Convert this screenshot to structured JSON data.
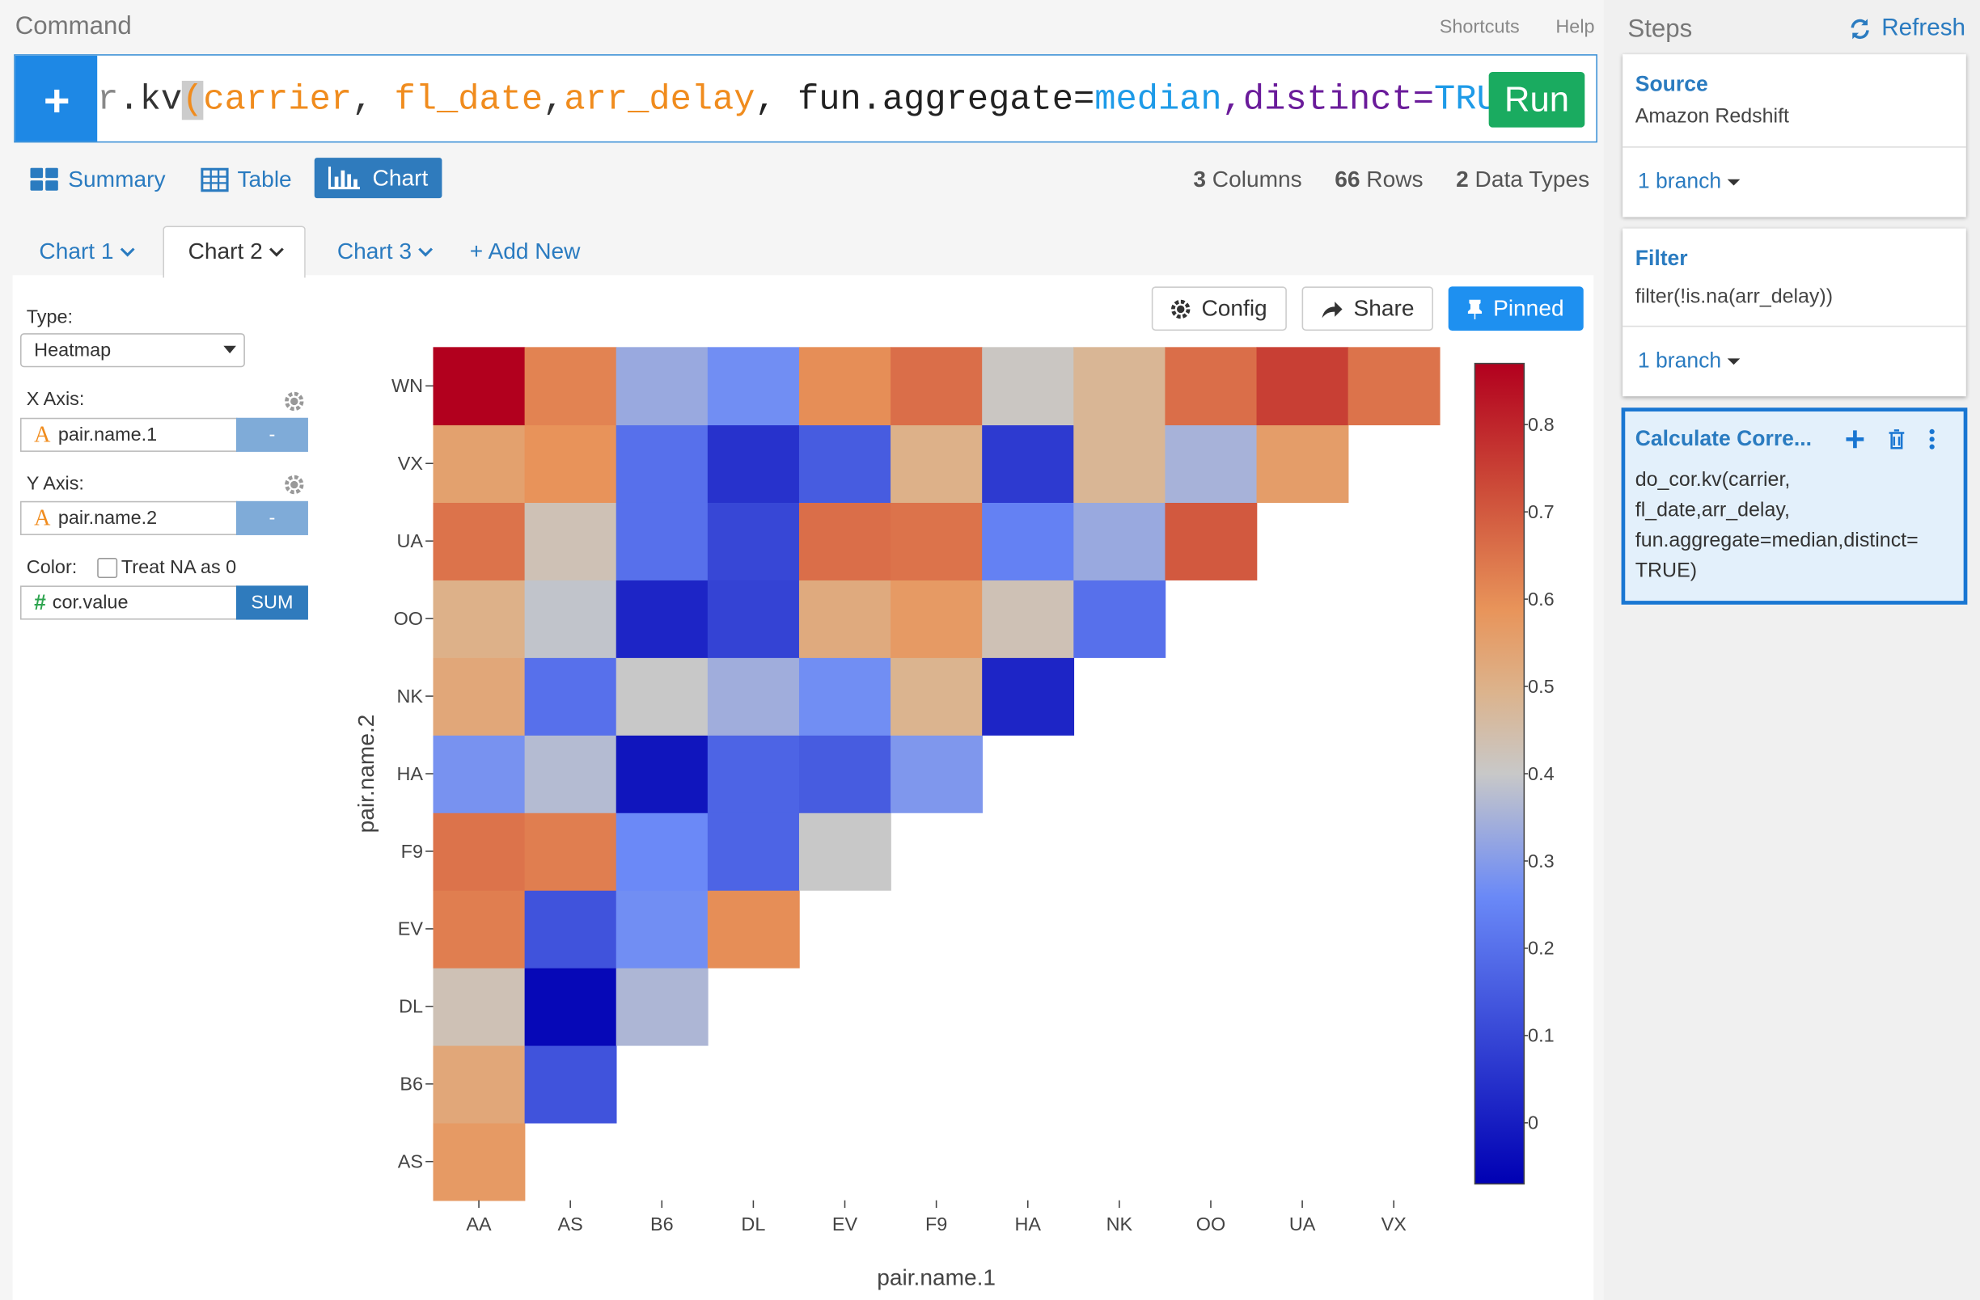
{
  "app": {
    "command_label": "Command",
    "shortcuts": "Shortcuts",
    "help": "Help",
    "run": "Run",
    "command_tokens": [
      {
        "text": "r",
        "color": "#888888"
      },
      {
        "text": ".kv",
        "color": "#333333"
      },
      {
        "text": "(",
        "color": "#f08c1e"
      },
      {
        "text": "carrier",
        "color": "#f08c1e"
      },
      {
        "text": ", ",
        "color": "#333333"
      },
      {
        "text": "fl_date",
        "color": "#f08c1e"
      },
      {
        "text": ",",
        "color": "#333333"
      },
      {
        "text": "arr_delay",
        "color": "#f08c1e"
      },
      {
        "text": ", fun.aggregate=",
        "color": "#222222"
      },
      {
        "text": "median",
        "color": "#1e9be8"
      },
      {
        "text": ",distinct=",
        "color": "#6a1b9a"
      },
      {
        "text": "TRUE",
        "color": "#1e9be8"
      },
      {
        "text": ")",
        "color": "#1e9be8"
      }
    ],
    "view_tabs": [
      "Summary",
      "Table",
      "Chart"
    ],
    "stats": [
      {
        "count": 3,
        "label": "Columns"
      },
      {
        "count": 66,
        "label": "Rows"
      },
      {
        "count": 2,
        "label": "Data Types"
      }
    ],
    "chart_tabs": [
      "Chart 1",
      "Chart 2",
      "Chart 3"
    ],
    "add_new": "Add New",
    "buttons": [
      "Config",
      "Share",
      "Pinned"
    ],
    "config": {
      "type_label": "Type:",
      "type_value": "Heatmap",
      "x_label": "X Axis:",
      "x_value": "pair.name.1",
      "x_agg": "-",
      "y_label": "Y Axis:",
      "y_value": "pair.name.2",
      "y_agg": "-",
      "color_label": "Color:",
      "treat_na": "Treat NA as 0",
      "color_value": "cor.value",
      "color_agg": "SUM"
    },
    "steps": {
      "title": "Steps",
      "refresh": "Refresh",
      "cards": [
        {
          "title": "Source",
          "lines": [
            "Amazon Redshift"
          ],
          "branch": "1 branch"
        },
        {
          "title": "Filter",
          "lines": [
            "filter(!is.na(arr_delay))"
          ],
          "branch": "1 branch"
        },
        {
          "title": "Calculate Corre...",
          "lines": [
            "do_cor.kv(carrier,",
            "fl_date,arr_delay,",
            "fun.aggregate=median,distinct=",
            "TRUE)"
          ]
        }
      ]
    }
  },
  "chart_data": {
    "type": "heatmap",
    "x_label": "pair.name.1",
    "y_label": "pair.name.2",
    "x": [
      "AA",
      "AS",
      "B6",
      "DL",
      "EV",
      "F9",
      "HA",
      "NK",
      "OO",
      "UA",
      "VX"
    ],
    "y": [
      "AS",
      "B6",
      "DL",
      "EV",
      "F9",
      "HA",
      "NK",
      "OO",
      "UA",
      "VX",
      "WN"
    ],
    "z": [
      [
        0.57,
        null,
        null,
        null,
        null,
        null,
        null,
        null,
        null,
        null,
        null
      ],
      [
        0.53,
        0.13,
        null,
        null,
        null,
        null,
        null,
        null,
        null,
        null,
        null
      ],
      [
        0.43,
        -0.05,
        0.36,
        null,
        null,
        null,
        null,
        null,
        null,
        null,
        null
      ],
      [
        0.63,
        0.13,
        0.27,
        0.6,
        null,
        null,
        null,
        null,
        null,
        null,
        null
      ],
      [
        0.65,
        0.63,
        0.26,
        0.17,
        0.4,
        null,
        null,
        null,
        null,
        null,
        null
      ],
      [
        0.28,
        0.37,
        -0.02,
        0.17,
        0.15,
        0.29,
        null,
        null,
        null,
        null,
        null
      ],
      [
        0.53,
        0.2,
        0.4,
        0.34,
        0.27,
        0.49,
        0.02,
        null,
        null,
        null,
        null
      ],
      [
        0.5,
        0.39,
        0.02,
        0.09,
        0.52,
        0.57,
        0.43,
        0.2,
        null,
        null,
        null
      ],
      [
        0.65,
        0.43,
        0.2,
        0.1,
        0.66,
        0.65,
        0.24,
        0.33,
        0.7,
        null,
        null
      ],
      [
        0.55,
        0.59,
        0.2,
        0.05,
        0.15,
        0.5,
        0.07,
        0.48,
        0.35,
        0.56,
        null
      ],
      [
        0.87,
        0.62,
        0.33,
        0.27,
        0.6,
        0.66,
        0.41,
        0.48,
        0.66,
        0.75,
        0.65
      ]
    ],
    "zlim": [
      -0.07,
      0.87
    ],
    "zticks": [
      0,
      0.1,
      0.2,
      0.3,
      0.4,
      0.5,
      0.6,
      0.7,
      0.8
    ],
    "colorscale": [
      [
        0,
        "#0000b3"
      ],
      [
        0.35,
        "#6a89f7"
      ],
      [
        0.5,
        "#c8c8c8"
      ],
      [
        0.6,
        "#dcb38c"
      ],
      [
        0.7,
        "#e8945a"
      ],
      [
        0.85,
        "#cc4a38"
      ],
      [
        1,
        "#b2001e"
      ]
    ]
  }
}
